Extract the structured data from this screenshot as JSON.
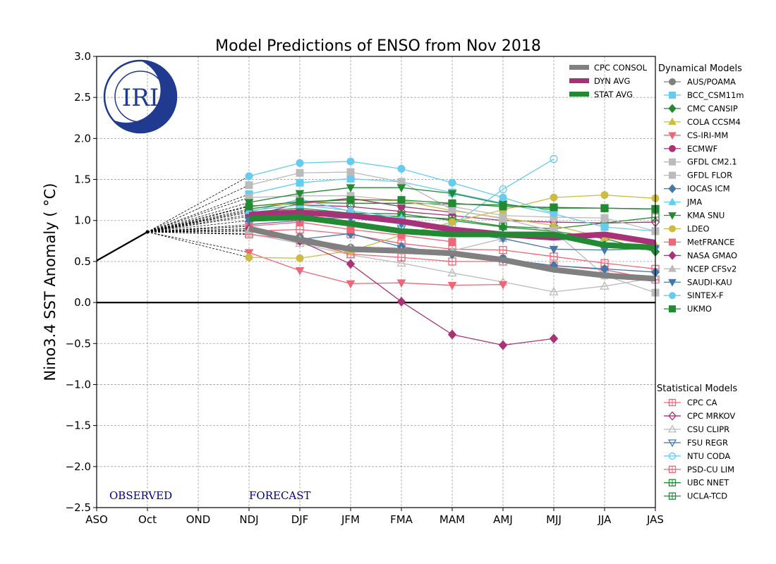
{
  "chart_data": {
    "type": "line",
    "title": "Model Predictions of ENSO from Nov 2018",
    "xlabel": "",
    "ylabel": "Nino3.4 SST Anomaly ( °C)",
    "categories": [
      "ASO",
      "Oct",
      "OND",
      "NDJ",
      "DJF",
      "JFM",
      "FMA",
      "MAM",
      "AMJ",
      "MJJ",
      "JJA",
      "JAS"
    ],
    "ylim": [
      -2.5,
      3.0
    ],
    "yticks": [
      3.0,
      2.5,
      2.0,
      1.5,
      1.0,
      0.5,
      0.0,
      -0.5,
      -1.0,
      -1.5,
      -2.0,
      -2.5
    ],
    "ytick_labels": [
      "3.0",
      "2.5",
      "2.0",
      "1.5",
      "1.0",
      "0.5",
      "0.0",
      "−0.5",
      "−1.0",
      "−1.5",
      "−2.0",
      "−2.5"
    ],
    "grid": true,
    "annotations": {
      "observed": "OBSERVED",
      "forecast": "FORECAST",
      "logo": "IRI"
    },
    "observed": {
      "name": "Observed",
      "x": [
        "ASO",
        "Oct"
      ],
      "values": [
        0.51,
        0.86
      ],
      "color": "#000000"
    },
    "forecast_start_index": 3,
    "averages": [
      {
        "name": "CPC CONSOL",
        "color": "#808080",
        "values": [
          0.9,
          0.76,
          0.65,
          0.63,
          0.6,
          0.52,
          0.4,
          0.33,
          0.29
        ]
      },
      {
        "name": "DYN AVG",
        "color": "#a7327a",
        "values": [
          1.07,
          1.1,
          1.06,
          0.99,
          0.89,
          0.83,
          0.79,
          0.83,
          0.73
        ]
      },
      {
        "name": "STAT AVG",
        "color": "#238a34",
        "values": [
          1.02,
          1.04,
          0.96,
          0.87,
          0.83,
          0.83,
          0.83,
          0.7,
          0.67
        ]
      }
    ],
    "legend_dynamical_title": "Dynamical Models",
    "legend_statistical_title": "Statistical Models",
    "legend_placement": "right",
    "dynamical": [
      {
        "name": "AUS/POAMA",
        "color": "#808080",
        "marker": "circle",
        "filled": true,
        "values": [
          0.9,
          0.8,
          0.67,
          0.64,
          0.62,
          0.54,
          0.42,
          null,
          null
        ]
      },
      {
        "name": "BCC_CSM11m",
        "color": "#66ccee",
        "marker": "square",
        "filled": true,
        "values": [
          1.32,
          1.46,
          1.51,
          1.47,
          1.34,
          1.21,
          1.08,
          0.92,
          0.87
        ]
      },
      {
        "name": "CMC CANSIP",
        "color": "#238a34",
        "marker": "diamond",
        "filled": true,
        "values": [
          1.1,
          1.15,
          1.09,
          1.08,
          1.0,
          0.92,
          0.87,
          0.78,
          0.62
        ]
      },
      {
        "name": "COLA CCSM4",
        "color": "#ccbb44",
        "marker": "triangle-up",
        "filled": true,
        "values": [
          1.18,
          1.2,
          1.26,
          1.24,
          1.12,
          1.03,
          0.94,
          0.79,
          0.7
        ]
      },
      {
        "name": "CS-IRI-MM",
        "color": "#ee6677",
        "marker": "triangle-down",
        "filled": true,
        "values": [
          0.61,
          0.39,
          0.23,
          0.24,
          0.21,
          0.22,
          null,
          null,
          null
        ]
      },
      {
        "name": "ECMWF",
        "color": "#aa3377",
        "marker": "circle",
        "filled": true,
        "values": [
          1.05,
          1.21,
          1.27,
          1.17,
          1.1,
          null,
          null,
          null,
          null
        ]
      },
      {
        "name": "GFDL CM2.1",
        "color": "#bbbbbb",
        "marker": "square",
        "filled": true,
        "values": [
          1.43,
          1.58,
          1.59,
          1.47,
          1.13,
          1.02,
          0.87,
          0.33,
          0.12
        ]
      },
      {
        "name": "GFDL FLOR",
        "color": "#bbbbbb",
        "marker": "square",
        "filled": true,
        "values": [
          1.28,
          1.3,
          1.3,
          1.24,
          1.17,
          1.06,
          1.04,
          1.03,
          0.87
        ]
      },
      {
        "name": "IOCAS ICM",
        "color": "#4477aa",
        "marker": "diamond",
        "filled": true,
        "values": [
          0.93,
          0.77,
          0.84,
          0.68,
          0.59,
          0.53,
          0.45,
          0.41,
          0.37
        ]
      },
      {
        "name": "JMA",
        "color": "#66ccee",
        "marker": "triangle-up",
        "filled": true,
        "values": [
          1.12,
          1.19,
          1.12,
          1.03,
          null,
          null,
          null,
          null,
          null
        ]
      },
      {
        "name": "KMA SNU",
        "color": "#238a34",
        "marker": "triangle-down",
        "filled": true,
        "values": [
          1.22,
          1.33,
          1.4,
          1.4,
          1.33,
          1.2,
          1.13,
          null,
          null
        ]
      },
      {
        "name": "LDEO",
        "color": "#ccbb44",
        "marker": "circle",
        "filled": true,
        "values": [
          0.55,
          0.54,
          0.63,
          0.82,
          0.98,
          1.13,
          1.28,
          1.31,
          1.27
        ]
      },
      {
        "name": "MetFRANCE",
        "color": "#ee6677",
        "marker": "square",
        "filled": true,
        "values": [
          0.93,
          0.98,
          0.89,
          0.82,
          0.74,
          null,
          null,
          null,
          null
        ]
      },
      {
        "name": "NASA GMAO",
        "color": "#aa3377",
        "marker": "diamond",
        "filled": true,
        "values": [
          0.9,
          0.75,
          0.47,
          0.01,
          -0.39,
          -0.52,
          -0.44,
          null,
          null
        ]
      },
      {
        "name": "NCEP CFSv2",
        "color": "#bbbbbb",
        "marker": "triangle-up",
        "filled": true,
        "values": [
          0.88,
          0.77,
          0.66,
          0.63,
          0.63,
          0.78,
          0.82,
          null,
          null
        ]
      },
      {
        "name": "SAUDI-KAU",
        "color": "#4477aa",
        "marker": "triangle-down",
        "filled": true,
        "values": [
          1.0,
          1.03,
          1.03,
          0.96,
          0.86,
          0.78,
          0.65,
          0.64,
          0.66
        ]
      },
      {
        "name": "SINTEX-F",
        "color": "#66ccee",
        "marker": "circle",
        "filled": true,
        "values": [
          1.54,
          1.7,
          1.72,
          1.63,
          1.46,
          1.28,
          1.09,
          null,
          null
        ]
      },
      {
        "name": "UKMO",
        "color": "#238a34",
        "marker": "square",
        "filled": true,
        "values": [
          1.17,
          1.23,
          1.25,
          1.25,
          1.21,
          1.17,
          1.16,
          1.15,
          1.14
        ]
      }
    ],
    "statistical": [
      {
        "name": "CPC CA",
        "color": "#ee6677",
        "marker": "square",
        "filled": false,
        "values": [
          0.87,
          0.89,
          0.83,
          0.72,
          0.65,
          0.64,
          0.56,
          0.48,
          0.41
        ]
      },
      {
        "name": "CPC MRKOV",
        "color": "#aa3377",
        "marker": "diamond",
        "filled": false,
        "values": [
          1.12,
          1.19,
          1.17,
          1.11,
          1.06,
          1.0,
          0.98,
          0.97,
          0.98
        ]
      },
      {
        "name": "CSU CLIPR",
        "color": "#bbbbbb",
        "marker": "triangle-up",
        "filled": false,
        "values": [
          0.84,
          0.72,
          0.58,
          0.48,
          0.36,
          0.25,
          0.13,
          0.2,
          0.3
        ]
      },
      {
        "name": "FSU REGR",
        "color": "#4477aa",
        "marker": "triangle-down",
        "filled": false,
        "values": [
          0.95,
          1.0,
          0.96,
          0.9,
          null,
          null,
          null,
          null,
          null
        ]
      },
      {
        "name": "NTU CODA",
        "color": "#66ccee",
        "marker": "circle",
        "filled": false,
        "values": [
          1.1,
          1.26,
          1.11,
          0.96,
          0.94,
          1.38,
          1.75,
          null,
          null
        ]
      },
      {
        "name": "PSD-CU LIM",
        "color": "#ee6677",
        "marker": "square",
        "filled": false,
        "values": [
          0.83,
          0.76,
          0.59,
          0.55,
          0.5,
          0.5,
          0.45,
          0.4,
          0.28
        ]
      },
      {
        "name": "UBC NNET",
        "color": "#238a34",
        "marker": "square",
        "filled": false,
        "values": [
          1.07,
          1.1,
          1.07,
          1.05,
          1.02,
          0.93,
          0.9,
          0.97,
          1.04
        ]
      },
      {
        "name": "UCLA-TCD",
        "color": "#238a34",
        "marker": "square",
        "filled": false,
        "values": [
          1.14,
          1.22,
          1.21,
          1.21,
          1.2,
          1.19,
          1.15,
          1.15,
          1.14
        ]
      }
    ]
  }
}
